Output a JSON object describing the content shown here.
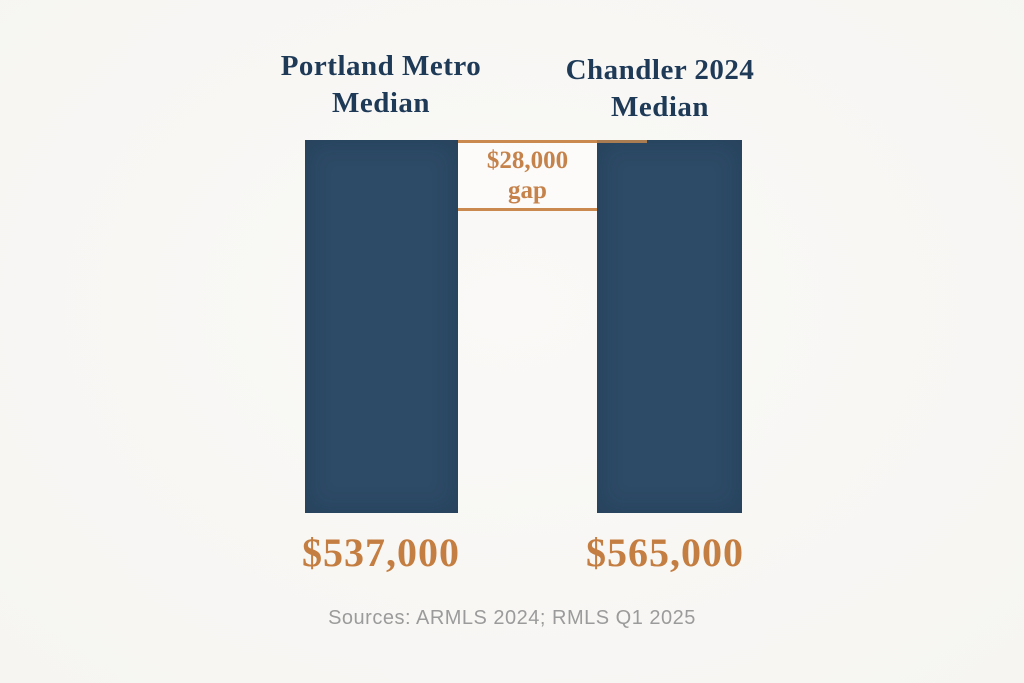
{
  "colors": {
    "background": "#faf9f7",
    "background_edge": "#f6f5f2",
    "navy": "#2d4a66",
    "navy_text": "#1e3a57",
    "orange_line": "#c9894f",
    "orange_text": "#c5824a",
    "orange_value": "#c57e41",
    "gap_box_bg": "#fcfbfa",
    "source_gray": "#9b9b9b"
  },
  "bars": [
    {
      "label_line1": "Portland Metro",
      "label_line2": "Median",
      "value_label": "$537,000"
    },
    {
      "label_line1": "Chandler 2024",
      "label_line2": "Median",
      "value_label": "$565,000"
    }
  ],
  "gap_annotation": {
    "line1": "$28,000",
    "line2": "gap"
  },
  "source_note": "Sources: ARMLS 2024; RMLS Q1 2025",
  "chart_data": {
    "type": "bar",
    "categories": [
      "Portland Metro Median",
      "Chandler 2024 Median"
    ],
    "values": [
      537000,
      565000
    ],
    "value_labels": [
      "$537,000",
      "$565,000"
    ],
    "annotation": "$28,000 gap",
    "annotation_position": "between bar tops",
    "title": "",
    "xlabel": "",
    "ylabel": "",
    "legend": "none",
    "grid": false,
    "source": "Sources: ARMLS 2024; RMLS Q1 2025",
    "layout_note": "Both bars drawn at equal height; difference shown only via the $28,000 gap callout bracket between the bars"
  }
}
